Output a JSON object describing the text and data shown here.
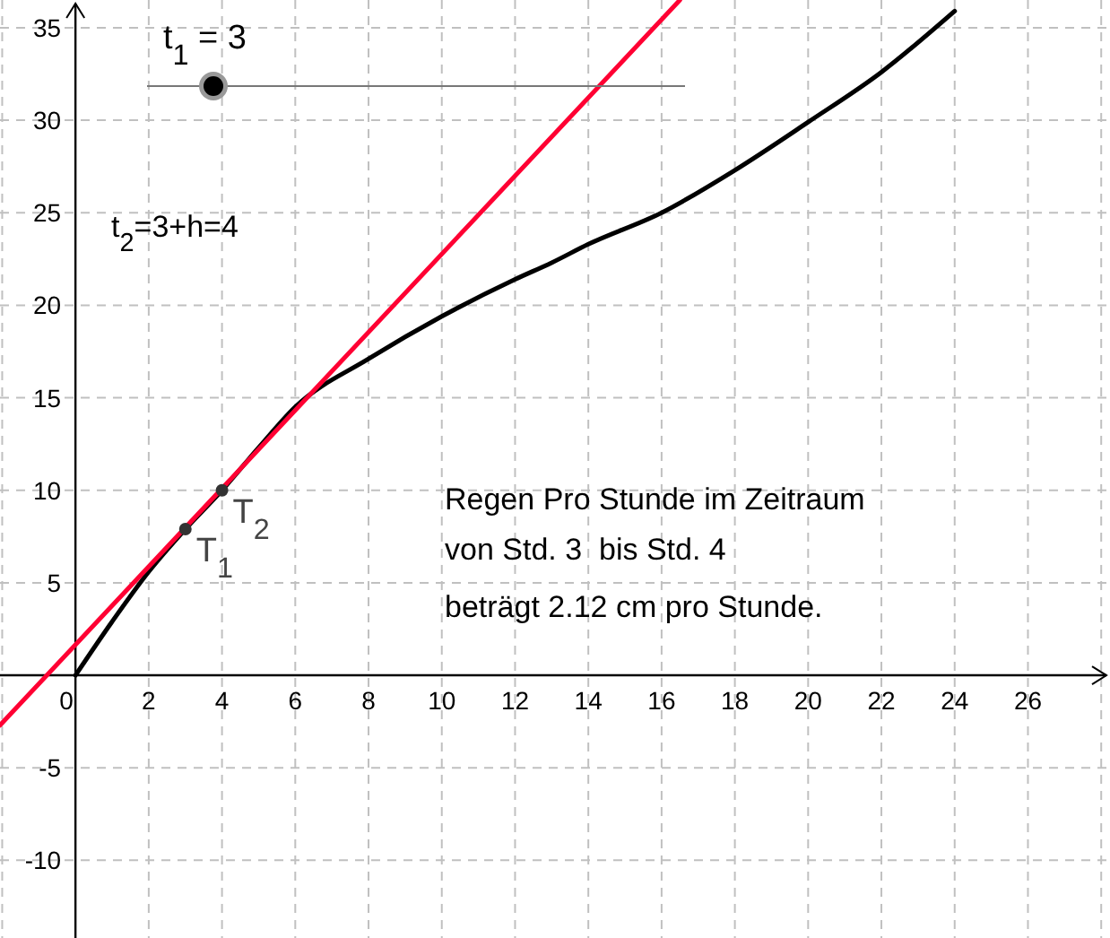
{
  "chart_data": {
    "type": "line",
    "xlim": [
      -2.06,
      28.24
    ],
    "ylim": [
      -14.2,
      36.5
    ],
    "xticks": [
      {
        "value": -2,
        "label": null
      },
      0,
      2,
      4,
      6,
      8,
      10,
      12,
      14,
      16,
      18,
      20,
      22,
      24,
      26,
      {
        "value": 28,
        "label": null
      }
    ],
    "yticks": [
      -10,
      -5,
      5,
      10,
      15,
      20,
      25,
      30,
      35
    ],
    "grid": true,
    "series": [
      {
        "color": "#000000",
        "x": [
          0,
          1,
          2,
          3,
          4,
          5,
          6,
          8,
          10,
          12,
          13,
          14,
          16,
          18,
          20,
          22,
          24
        ],
        "values": [
          0,
          2.9,
          5.6,
          7.9,
          10,
          12.3,
          14.5,
          17.1,
          19.4,
          21.4,
          22.3,
          23.3,
          25.0,
          27.3,
          29.9,
          32.6,
          35.9
        ]
      },
      {
        "color": "#ff0033",
        "x": [
          -2.06,
          16.5
        ],
        "values": [
          -2.7,
          36.5
        ]
      },
      {
        "type": "scatter",
        "marker": "circle",
        "color": "#333333",
        "x": [
          3,
          4
        ],
        "values": [
          7.9,
          10
        ]
      }
    ],
    "annotations": [
      "t$_{1}$ = 3",
      "t$_{2}$=3+h=4",
      "Regen Pro Stunde im Zeitraum",
      "von Std. 3  bis Std. 4",
      "beträgt 2.12 cm pro Stunde.",
      {
        "text": "T$_{1}$",
        "x": 3,
        "y": 7.9
      },
      {
        "text": "T$_{2}$",
        "x": 4,
        "y": 10
      }
    ]
  }
}
